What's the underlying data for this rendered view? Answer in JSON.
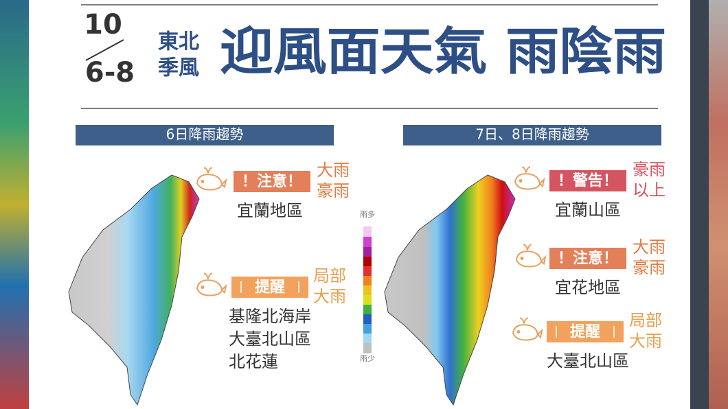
{
  "header": {
    "date_top": "10",
    "date_bottom": "6-8",
    "tag": [
      "東北",
      "季風"
    ],
    "title": "迎風面天氣 雨陰雨"
  },
  "panels": [
    {
      "heading": "6日降雨趨勢",
      "alerts": [
        {
          "badge": "！注意！",
          "level": [
            "大雨",
            "豪雨"
          ],
          "areas": [
            "宜蘭地區"
          ]
        },
        {
          "badge": "提醒",
          "level": [
            "局部",
            "大雨"
          ],
          "areas": [
            "基隆北海岸",
            "大臺北山區",
            "北花蓮"
          ]
        }
      ]
    },
    {
      "heading": "7日、8日降雨趨勢",
      "alerts": [
        {
          "badge": "！警告！",
          "level": [
            "豪雨",
            "以上"
          ],
          "areas": [
            "宜蘭山區"
          ]
        },
        {
          "badge": "！注意！",
          "level": [
            "大雨",
            "豪雨"
          ],
          "areas": [
            "宜花地區"
          ]
        },
        {
          "badge": "提醒",
          "level": [
            "局部",
            "大雨"
          ],
          "areas": [
            "大臺北山區"
          ]
        }
      ]
    }
  ],
  "legend": {
    "top": "雨多",
    "bottom": "雨少"
  }
}
